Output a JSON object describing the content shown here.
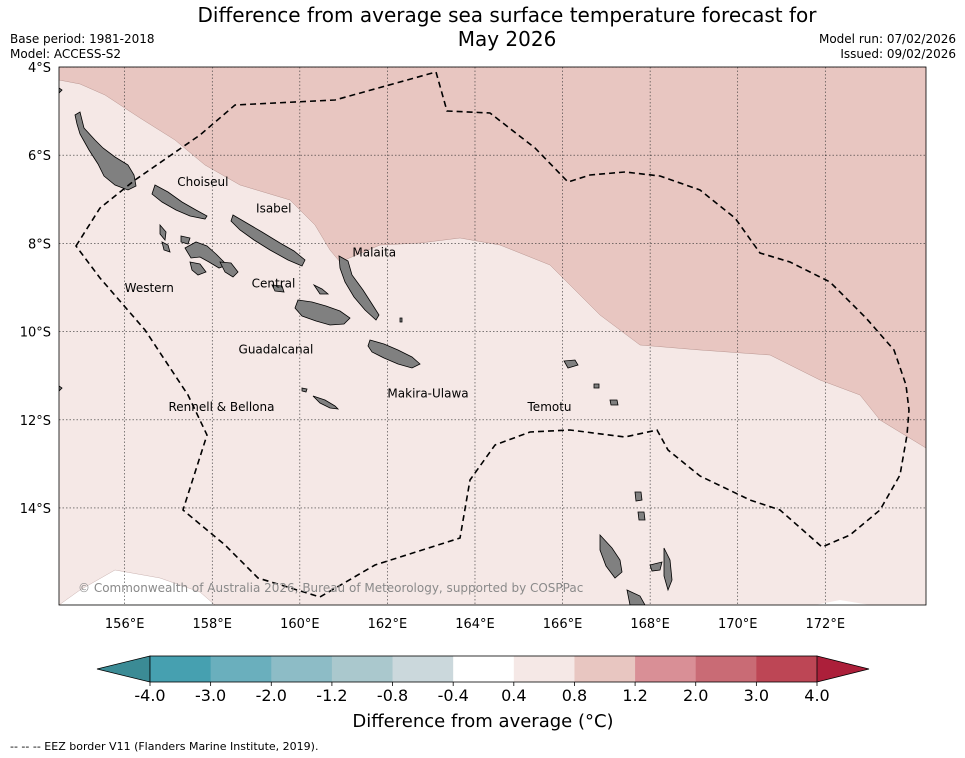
{
  "title_line1": "Difference from average sea surface temperature forecast for",
  "title_line2": "May 2026",
  "base_period": "Base period: 1981-2018",
  "model": "Model: ACCESS-S2",
  "model_run": "Model run: 07/02/2026",
  "issued": "Issued: 09/02/2026",
  "copyright": "© Commonwealth of Australia 2026, Bureau of Meteorology, supported by COSPPac",
  "footnote": "--  --  -- EEZ border V11 (Flanders Marine Institute, 2019).",
  "chart_data": {
    "type": "heatmap",
    "title": "Difference from average sea surface temperature forecast for May 2026",
    "xlim": [
      154.5,
      174.3
    ],
    "ylim": [
      -16.2,
      -4.0
    ],
    "x_ticks": [
      {
        "value": 156,
        "label": "156°E"
      },
      {
        "value": 158,
        "label": "158°E"
      },
      {
        "value": 160,
        "label": "160°E"
      },
      {
        "value": 162,
        "label": "162°E"
      },
      {
        "value": 164,
        "label": "164°E"
      },
      {
        "value": 166,
        "label": "166°E"
      },
      {
        "value": 168,
        "label": "168°E"
      },
      {
        "value": 170,
        "label": "170°E"
      },
      {
        "value": 172,
        "label": "172°E"
      }
    ],
    "y_ticks": [
      {
        "value": -4,
        "label": "4°S"
      },
      {
        "value": -6,
        "label": "6°S"
      },
      {
        "value": -8,
        "label": "8°S"
      },
      {
        "value": -10,
        "label": "10°S"
      },
      {
        "value": -12,
        "label": "12°S"
      },
      {
        "value": -14,
        "label": "14°S"
      }
    ],
    "colorbar": {
      "title": "Difference from average (°C)",
      "levels": [
        "-4.0",
        "-3.0",
        "-2.0",
        "-1.2",
        "-0.8",
        "-0.4",
        "0.4",
        "0.8",
        "1.2",
        "2.0",
        "3.0",
        "4.0"
      ],
      "colors": [
        "#46a0b0",
        "#6aafbd",
        "#8dbcc6",
        "#aac8cd",
        "#cbd8dc",
        "#ffffff",
        "#f5e8e6",
        "#e8c6c1",
        "#d98f96",
        "#c96b75",
        "#bd4655"
      ],
      "extend_low_color": "#3b8b95",
      "extend_high_color": "#ac1f3a"
    },
    "regions": [
      {
        "label": "0.8 to 1.2",
        "area": "north-east of the EEZ",
        "color": "#e8c6c1"
      },
      {
        "label": "0.4 to 0.8",
        "area": "most of the Solomon Islands EEZ",
        "color": "#f5e8e6"
      },
      {
        "label": "-0.4 to 0.4",
        "area": "far south-west corner",
        "color": "#ffffff"
      }
    ],
    "place_labels": [
      {
        "name": "Choiseul",
        "lon": 157.2,
        "lat": -6.7
      },
      {
        "name": "Isabel",
        "lon": 159.0,
        "lat": -7.3
      },
      {
        "name": "Malaita",
        "lon": 161.2,
        "lat": -8.3
      },
      {
        "name": "Western",
        "lon": 156.0,
        "lat": -9.1
      },
      {
        "name": "Central",
        "lon": 158.9,
        "lat": -9.0
      },
      {
        "name": "Guadalcanal",
        "lon": 158.6,
        "lat": -10.5
      },
      {
        "name": "Makira-Ulawa",
        "lon": 162.0,
        "lat": -11.5
      },
      {
        "name": "Rennell & Bellona",
        "lon": 157.0,
        "lat": -11.8
      },
      {
        "name": "Temotu",
        "lon": 165.2,
        "lat": -11.8
      }
    ]
  }
}
